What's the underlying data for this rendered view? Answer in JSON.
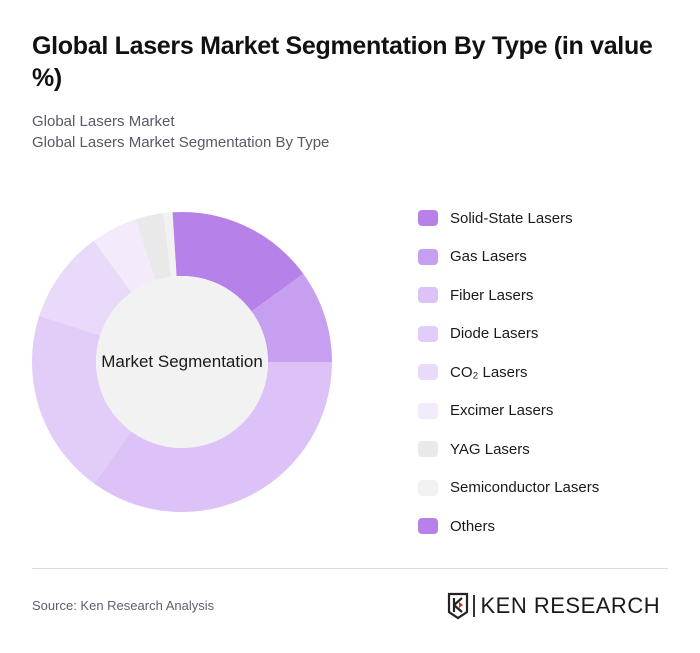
{
  "header": {
    "title": "Global Lasers Market Segmentation By Type (in value %)",
    "subtitle_1": "Global Lasers Market",
    "subtitle_2": "Global Lasers Market Segmentation By Type"
  },
  "chart": {
    "center_label": "Market Segmentation"
  },
  "legend": {
    "items": [
      {
        "label": "Solid-State Lasers",
        "color": "#b682ea"
      },
      {
        "label": "Gas Lasers",
        "color": "#c79ff0"
      },
      {
        "label": "Fiber Lasers",
        "color": "#dcc2f7"
      },
      {
        "label": "Diode Lasers",
        "color": "#e2cdf8"
      },
      {
        "label": "CO₂ Lasers",
        "color": "#e9dafa"
      },
      {
        "label": "Excimer Lasers",
        "color": "#f3ebfc"
      },
      {
        "label": "YAG Lasers",
        "color": "#e9e9e9"
      },
      {
        "label": "Semiconductor Lasers",
        "color": "#f2f2f2"
      },
      {
        "label": "Others",
        "color": "#b682ea"
      }
    ]
  },
  "footer": {
    "source": "Source: Ken Research Analysis",
    "logo_text": "KEN RESEARCH"
  },
  "chart_data": {
    "type": "pie",
    "variant": "donut",
    "title": "Global Lasers Market Segmentation By Type (in value %)",
    "center_label": "Market Segmentation",
    "categories": [
      "Solid-State Lasers",
      "Gas Lasers",
      "Fiber Lasers",
      "Diode Lasers",
      "CO₂ Lasers",
      "Excimer Lasers",
      "YAG Lasers",
      "Semiconductor Lasers",
      "Others"
    ],
    "values": [
      15,
      10,
      35,
      20,
      10,
      5,
      3,
      1,
      1
    ],
    "colors": [
      "#b682ea",
      "#c79ff0",
      "#dcc2f7",
      "#e2cdf8",
      "#e9dafa",
      "#f3ebfc",
      "#e9e9e9",
      "#f2f2f2",
      "#b682ea"
    ],
    "legend_position": "right",
    "start_angle": 0,
    "direction": "clockwise"
  }
}
